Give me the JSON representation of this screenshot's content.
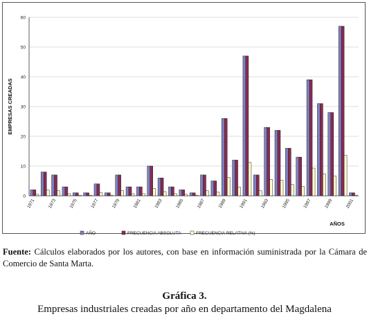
{
  "chart_data": {
    "type": "bar",
    "ylabel": "EMPRESAS CREADAS",
    "xlabel": "AÑOS",
    "ylim": [
      0,
      60
    ],
    "yticks": [
      0,
      10,
      20,
      30,
      40,
      50,
      60
    ],
    "grid": true,
    "legend_position": "bottom",
    "categories": [
      "1971",
      "1972",
      "1973",
      "1974",
      "1975",
      "1976",
      "1977",
      "1978",
      "1979",
      "1980",
      "1981",
      "1982",
      "1983",
      "1984",
      "1985",
      "1986",
      "1987",
      "1988",
      "1989",
      "1990",
      "1991",
      "1992",
      "1993",
      "1994",
      "1995",
      "1996",
      "1997",
      "1998",
      "1999",
      "2000",
      "2001"
    ],
    "xtick_labels": [
      "1971",
      "1973",
      "1975",
      "1977",
      "1979",
      "1981",
      "1983",
      "1985",
      "1987",
      "1989",
      "1991",
      "1993",
      "1995",
      "1997",
      "1999",
      "2001"
    ],
    "series": [
      {
        "name": "AÑO",
        "color": "#8080c0",
        "values": [
          2,
          8,
          7,
          3,
          1,
          1,
          4,
          1,
          7,
          3,
          3,
          10,
          6,
          3,
          2,
          1,
          7,
          5,
          26,
          12,
          47,
          7,
          23,
          22,
          16,
          13,
          39,
          31,
          28,
          57,
          1
        ]
      },
      {
        "name": "FRECUENCIA ABSOLUTA",
        "color": "#8a2a52",
        "values": [
          2,
          8,
          7,
          3,
          1,
          1,
          4,
          1,
          7,
          3,
          3,
          10,
          6,
          3,
          2,
          1,
          7,
          5,
          26,
          12,
          47,
          7,
          23,
          22,
          16,
          13,
          39,
          31,
          28,
          57,
          1
        ]
      },
      {
        "name": "FRECUENCIA RELATIVA (%)",
        "color": "#ffffcc",
        "values": [
          0.5,
          1.9,
          1.7,
          0.7,
          0.2,
          0.2,
          1.0,
          0.2,
          1.7,
          0.7,
          0.7,
          2.4,
          1.4,
          0.7,
          0.5,
          0.2,
          1.7,
          1.2,
          6.2,
          2.9,
          11.2,
          1.7,
          5.5,
          5.2,
          3.8,
          3.1,
          9.3,
          7.4,
          6.7,
          13.6,
          0.2
        ]
      }
    ]
  },
  "source": {
    "label": "Fuente:",
    "text": "Cálculos elaborados por los autores, con base en información suministrada por la Cámara de Comercio de Santa Marta."
  },
  "caption": {
    "label": "Gráfica 3.",
    "title": "Empresas industriales creadas por año en departamento del Magdalena"
  }
}
